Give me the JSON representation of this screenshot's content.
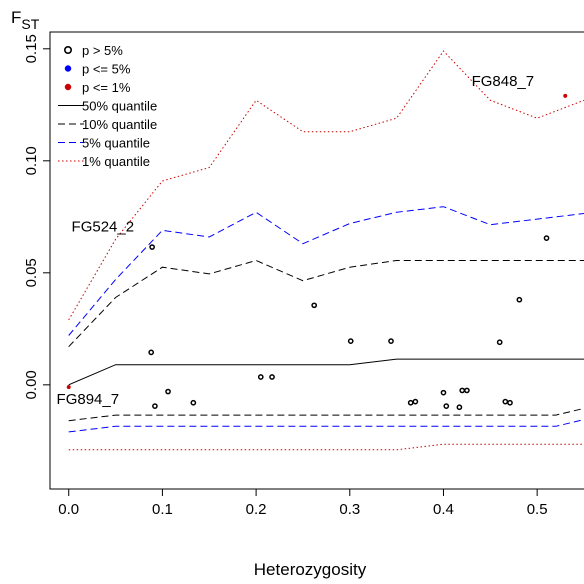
{
  "chart_data": {
    "type": "scatter",
    "title": "",
    "xlabel": "Heterozygosity",
    "ylabel": {
      "main": "F",
      "sub": "ST"
    },
    "xlim": [
      -0.02,
      0.55
    ],
    "ylim": [
      -0.0465,
      0.1575
    ],
    "xticks": [
      0.0,
      0.1,
      0.2,
      0.3,
      0.4,
      0.5
    ],
    "xtick_labels": [
      "0.0",
      "0.1",
      "0.2",
      "0.3",
      "0.4",
      "0.5"
    ],
    "yticks": [
      0.0,
      0.05,
      0.1,
      0.15
    ],
    "ytick_labels": [
      "0.00",
      "0.05",
      "0.10",
      "0.15"
    ],
    "grid": false,
    "legend": {
      "position": "top-left",
      "entries": [
        {
          "label": "p > 5%",
          "marker": "open-circle",
          "color": "#000000"
        },
        {
          "label": "p <= 5%",
          "marker": "filled-circle",
          "color": "#0000ff"
        },
        {
          "label": "p <= 1%",
          "marker": "filled-circle",
          "color": "#cc0000"
        },
        {
          "label": "50% quantile",
          "line": "solid",
          "color": "#000000"
        },
        {
          "label": "10% quantile",
          "line": "dashed",
          "color": "#000000"
        },
        {
          "label": "5% quantile",
          "line": "dashed",
          "color": "#0000ff"
        },
        {
          "label": "1% quantile",
          "line": "dotted",
          "color": "#cc0000"
        }
      ]
    },
    "quantile_lines": [
      {
        "name": "50% quantile",
        "style": "solid",
        "color": "#000000",
        "points": [
          [
            0.0,
            0.0
          ],
          [
            0.05,
            0.009
          ],
          [
            0.15,
            0.009
          ],
          [
            0.3,
            0.009
          ],
          [
            0.35,
            0.0115
          ],
          [
            0.55,
            0.0115
          ]
        ]
      },
      {
        "name": "10% quantile upper",
        "style": "dashed",
        "color": "#000000",
        "points": [
          [
            0.0,
            0.017
          ],
          [
            0.05,
            0.039
          ],
          [
            0.1,
            0.0525
          ],
          [
            0.15,
            0.0495
          ],
          [
            0.2,
            0.0555
          ],
          [
            0.25,
            0.0465
          ],
          [
            0.3,
            0.0525
          ],
          [
            0.35,
            0.0555
          ],
          [
            0.55,
            0.0555
          ]
        ]
      },
      {
        "name": "10% quantile lower",
        "style": "dashed",
        "color": "#000000",
        "points": [
          [
            0.0,
            -0.016
          ],
          [
            0.05,
            -0.0135
          ],
          [
            0.52,
            -0.0135
          ],
          [
            0.55,
            -0.0105
          ]
        ]
      },
      {
        "name": "5% quantile upper",
        "style": "dashed",
        "color": "#0000ff",
        "points": [
          [
            0.0,
            0.022
          ],
          [
            0.05,
            0.047
          ],
          [
            0.1,
            0.069
          ],
          [
            0.15,
            0.066
          ],
          [
            0.2,
            0.077
          ],
          [
            0.25,
            0.063
          ],
          [
            0.3,
            0.072
          ],
          [
            0.35,
            0.077
          ],
          [
            0.4,
            0.0795
          ],
          [
            0.45,
            0.0715
          ],
          [
            0.5,
            0.074
          ],
          [
            0.55,
            0.0765
          ]
        ]
      },
      {
        "name": "5% quantile lower",
        "style": "dashed",
        "color": "#0000ff",
        "points": [
          [
            0.0,
            -0.021
          ],
          [
            0.05,
            -0.0185
          ],
          [
            0.52,
            -0.0185
          ],
          [
            0.55,
            -0.0155
          ]
        ]
      },
      {
        "name": "1% quantile upper",
        "style": "dotted",
        "color": "#cc0000",
        "points": [
          [
            0.0,
            0.029
          ],
          [
            0.05,
            0.065
          ],
          [
            0.1,
            0.091
          ],
          [
            0.15,
            0.097
          ],
          [
            0.2,
            0.127
          ],
          [
            0.25,
            0.113
          ],
          [
            0.3,
            0.113
          ],
          [
            0.35,
            0.119
          ],
          [
            0.4,
            0.149
          ],
          [
            0.45,
            0.127
          ],
          [
            0.5,
            0.119
          ],
          [
            0.55,
            0.127
          ]
        ]
      },
      {
        "name": "1% quantile lower",
        "style": "dotted",
        "color": "#cc0000",
        "points": [
          [
            0.0,
            -0.029
          ],
          [
            0.35,
            -0.029
          ],
          [
            0.4,
            -0.0265
          ],
          [
            0.55,
            -0.0265
          ]
        ]
      }
    ],
    "points": [
      {
        "x": 0.0,
        "y": -0.001,
        "group": "p <= 1%",
        "color": "#cc0000",
        "filled": true
      },
      {
        "x": 0.53,
        "y": 0.129,
        "group": "p <= 1%",
        "color": "#cc0000",
        "filled": true
      },
      {
        "x": 0.089,
        "y": 0.0615,
        "group": "p > 5%",
        "color": "#000000",
        "filled": false
      },
      {
        "x": 0.088,
        "y": 0.0145,
        "group": "p > 5%",
        "color": "#000000",
        "filled": false
      },
      {
        "x": 0.092,
        "y": -0.0095,
        "group": "p > 5%",
        "color": "#000000",
        "filled": false
      },
      {
        "x": 0.106,
        "y": -0.003,
        "group": "p > 5%",
        "color": "#000000",
        "filled": false
      },
      {
        "x": 0.133,
        "y": -0.008,
        "group": "p > 5%",
        "color": "#000000",
        "filled": false
      },
      {
        "x": 0.205,
        "y": 0.0035,
        "group": "p > 5%",
        "color": "#000000",
        "filled": false
      },
      {
        "x": 0.217,
        "y": 0.0035,
        "group": "p > 5%",
        "color": "#000000",
        "filled": false
      },
      {
        "x": 0.262,
        "y": 0.0355,
        "group": "p > 5%",
        "color": "#000000",
        "filled": false
      },
      {
        "x": 0.301,
        "y": 0.0195,
        "group": "p > 5%",
        "color": "#000000",
        "filled": false
      },
      {
        "x": 0.344,
        "y": 0.0195,
        "group": "p > 5%",
        "color": "#000000",
        "filled": false
      },
      {
        "x": 0.365,
        "y": -0.008,
        "group": "p > 5%",
        "color": "#000000",
        "filled": false
      },
      {
        "x": 0.37,
        "y": -0.0075,
        "group": "p > 5%",
        "color": "#000000",
        "filled": false
      },
      {
        "x": 0.4,
        "y": -0.0035,
        "group": "p > 5%",
        "color": "#000000",
        "filled": false
      },
      {
        "x": 0.403,
        "y": -0.0095,
        "group": "p > 5%",
        "color": "#000000",
        "filled": false
      },
      {
        "x": 0.417,
        "y": -0.01,
        "group": "p > 5%",
        "color": "#000000",
        "filled": false
      },
      {
        "x": 0.42,
        "y": -0.0025,
        "group": "p > 5%",
        "color": "#000000",
        "filled": false
      },
      {
        "x": 0.425,
        "y": -0.0025,
        "group": "p > 5%",
        "color": "#000000",
        "filled": false
      },
      {
        "x": 0.46,
        "y": 0.019,
        "group": "p > 5%",
        "color": "#000000",
        "filled": false
      },
      {
        "x": 0.466,
        "y": -0.0075,
        "group": "p > 5%",
        "color": "#000000",
        "filled": false
      },
      {
        "x": 0.471,
        "y": -0.008,
        "group": "p > 5%",
        "color": "#000000",
        "filled": false
      },
      {
        "x": 0.481,
        "y": 0.038,
        "group": "p > 5%",
        "color": "#000000",
        "filled": false
      },
      {
        "x": 0.51,
        "y": 0.0655,
        "group": "p > 5%",
        "color": "#000000",
        "filled": false
      }
    ],
    "annotations": [
      {
        "text": "FG848_7",
        "x": 0.43,
        "y": 0.1335
      },
      {
        "text": "FG524_2",
        "x": 0.003,
        "y": 0.0685
      },
      {
        "text": "FG894_7",
        "x": -0.013,
        "y": -0.0085
      }
    ]
  }
}
